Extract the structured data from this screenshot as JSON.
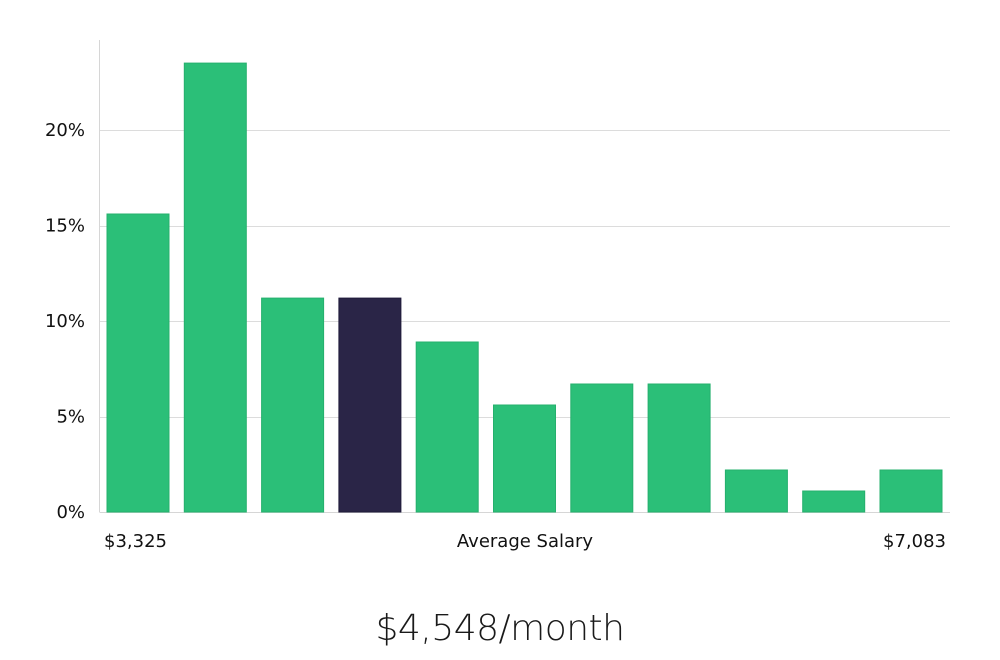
{
  "chart_data": {
    "type": "bar",
    "title": "",
    "xlabel": "Average Salary",
    "ylabel": "",
    "x_min_label": "$3,325",
    "x_max_label": "$7,083",
    "values": [
      15.6,
      23.5,
      11.2,
      11.2,
      8.9,
      5.6,
      6.7,
      6.7,
      2.2,
      1.1,
      2.2
    ],
    "highlight_index": 3,
    "ylim": [
      0,
      25
    ],
    "yticks": [
      0,
      5,
      10,
      15,
      20
    ],
    "ytick_labels": [
      "0%",
      "5%",
      "10%",
      "15%",
      "20%"
    ],
    "grid": true,
    "colors": {
      "bar": "#2bbf78",
      "bar_edge": "#25b06d",
      "highlight": "#2a2547",
      "highlight_edge": "#1f1a3a"
    }
  },
  "caption": "$4,548/month"
}
